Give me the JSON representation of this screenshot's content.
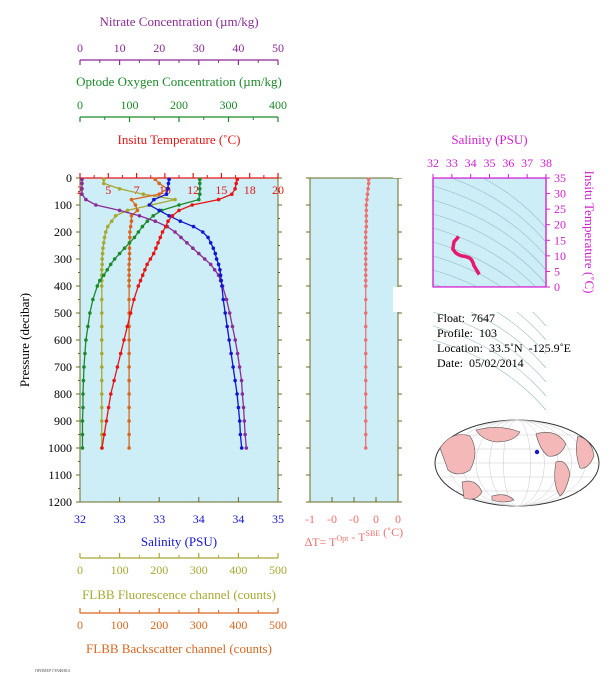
{
  "colors": {
    "nitrate": "#8b2b95",
    "oxygen": "#1a8a2a",
    "temperature": "#e81414",
    "salinity": "#1414d2",
    "fluorescence": "#a8a830",
    "backscatter": "#d9661f",
    "delta_t": "#f07070",
    "ts_axis": "#d21ed2",
    "panel_bg": "#cdeef7",
    "frame": "#6b6b20"
  },
  "axes": {
    "nitrate": {
      "label": "Nitrate Concentration (µm/kg)",
      "ticks": [
        "0",
        "10",
        "20",
        "30",
        "40",
        "50"
      ],
      "range": [
        0,
        50
      ]
    },
    "oxygen": {
      "label": "Optode Oxygen Concentration (µm/kg)",
      "ticks": [
        "0",
        "100",
        "200",
        "300",
        "400"
      ],
      "range": [
        0,
        400
      ]
    },
    "temperature": {
      "label": "Insitu Temperature (˚C)",
      "ticks": [
        "2",
        "5",
        "7",
        "10",
        "12",
        "15",
        "18",
        "20"
      ],
      "range": [
        2,
        20
      ]
    },
    "salinity": {
      "label": "Salinity (PSU)",
      "ticks": [
        "32",
        "33",
        "33",
        "34",
        "34",
        "35"
      ],
      "range": [
        32,
        35
      ]
    },
    "pressure": {
      "label": "Pressure (decibar)",
      "ticks": [
        "0",
        "100",
        "200",
        "300",
        "400",
        "500",
        "600",
        "700",
        "800",
        "900",
        "1000",
        "1100",
        "1200"
      ],
      "range": [
        0,
        1200
      ]
    },
    "fluorescence": {
      "label": "FLBB Fluorescence channel (counts)",
      "ticks": [
        "0",
        "100",
        "200",
        "300",
        "400",
        "500"
      ],
      "range": [
        0,
        500
      ]
    },
    "backscatter": {
      "label": "FLBB Backscatter channel (counts)",
      "ticks": [
        "0",
        "100",
        "200",
        "300",
        "400",
        "500"
      ],
      "range": [
        0,
        500
      ]
    },
    "delta_t": {
      "label_main": "∆T= T",
      "label_sup1": "Opt",
      "label_mid": " - T",
      "label_sup2": "SBE",
      "label_end": " (˚C)",
      "ticks": [
        "-1",
        "-0",
        "-0",
        "0",
        "0"
      ],
      "range": [
        -1,
        0.5
      ]
    }
  },
  "ts_panel": {
    "top_label": "Salinity (PSU)",
    "top_ticks": [
      "32",
      "33",
      "34",
      "35",
      "36",
      "37",
      "38"
    ],
    "right_label": "Insitu Temperature (˚C)",
    "right_ticks": [
      "0",
      "5",
      "10",
      "15",
      "20",
      "25",
      "30",
      "35"
    ],
    "sal_range": [
      32,
      38
    ],
    "temp_range": [
      0,
      35
    ]
  },
  "info": {
    "float": "Float:  7647",
    "profile": "Profile:  103",
    "location": "Location:  33.5˚N  -125.9˚E",
    "date": "Date:  05/02/2014"
  },
  "footer_text": "ПРИМЕР ГРАФИКА",
  "chart_data": {
    "type": "line",
    "title": "",
    "y": "pressure (decibar)",
    "series": [
      {
        "name": "Insitu Temperature",
        "x_unit": "˚C",
        "pressure": [
          5,
          20,
          40,
          60,
          80,
          100,
          120,
          140,
          160,
          180,
          200,
          220,
          240,
          260,
          280,
          300,
          320,
          340,
          360,
          380,
          400,
          450,
          500,
          550,
          600,
          650,
          700,
          750,
          800,
          850,
          900,
          950,
          1000
        ],
        "values": [
          16.3,
          16.2,
          16.1,
          15.8,
          14.6,
          12.2,
          11.0,
          10.4,
          10.0,
          9.8,
          9.5,
          9.3,
          9.1,
          8.9,
          8.7,
          8.4,
          8.1,
          7.9,
          7.7,
          7.5,
          7.3,
          6.9,
          6.6,
          6.3,
          6.0,
          5.7,
          5.4,
          5.1,
          4.8,
          4.6,
          4.4,
          4.2,
          4.0
        ]
      },
      {
        "name": "Salinity",
        "x_unit": "PSU",
        "pressure": [
          5,
          20,
          40,
          60,
          80,
          100,
          120,
          140,
          160,
          180,
          200,
          220,
          240,
          260,
          280,
          300,
          320,
          340,
          360,
          380,
          400,
          450,
          500,
          550,
          600,
          650,
          700,
          750,
          800,
          850,
          900,
          950,
          1000
        ],
        "values": [
          33.35,
          33.34,
          33.33,
          33.31,
          33.12,
          33.05,
          33.2,
          33.35,
          33.52,
          33.72,
          33.86,
          33.94,
          33.98,
          34.02,
          34.05,
          34.07,
          34.1,
          34.12,
          34.13,
          34.14,
          34.15,
          34.17,
          34.2,
          34.23,
          34.26,
          34.29,
          34.32,
          34.35,
          34.38,
          34.4,
          34.42,
          34.43,
          34.45
        ]
      },
      {
        "name": "Nitrate Concentration",
        "x_unit": "µm/kg",
        "pressure": [
          5,
          20,
          40,
          60,
          80,
          100,
          120,
          140,
          160,
          180,
          200,
          220,
          240,
          260,
          280,
          300,
          320,
          340,
          360,
          380,
          400,
          450,
          500,
          550,
          600,
          650,
          700,
          750,
          800,
          850,
          900,
          950,
          1000
        ],
        "values": [
          0.5,
          0.5,
          0.5,
          0.5,
          1.5,
          4,
          10,
          15,
          19,
          22,
          24,
          25.5,
          27,
          28.5,
          30,
          31.5,
          33,
          34,
          35,
          35.5,
          36,
          37,
          37.8,
          38.5,
          39.2,
          39.8,
          40.3,
          40.8,
          41,
          41.3,
          41.5,
          41.7,
          42
        ]
      },
      {
        "name": "Optode Oxygen Concentration",
        "x_unit": "µm/kg",
        "pressure": [
          5,
          20,
          40,
          60,
          80,
          100,
          120,
          140,
          160,
          180,
          200,
          220,
          240,
          260,
          280,
          300,
          320,
          340,
          360,
          380,
          400,
          450,
          500,
          550,
          600,
          650,
          700,
          750,
          800,
          850,
          900,
          950,
          1000
        ],
        "values": [
          242,
          242,
          242,
          242,
          240,
          200,
          165,
          148,
          136,
          126,
          118,
          110,
          100,
          90,
          80,
          70,
          62,
          55,
          48,
          40,
          35,
          26,
          20,
          16,
          12,
          10,
          8,
          7,
          6,
          6,
          5,
          5,
          5
        ]
      },
      {
        "name": "FLBB Fluorescence channel",
        "x_unit": "counts",
        "pressure": [
          5,
          20,
          40,
          60,
          80,
          100,
          120,
          140,
          160,
          180,
          200,
          220,
          240,
          260,
          280,
          300,
          320,
          340,
          360,
          380,
          400,
          450,
          500,
          550,
          600,
          650,
          700,
          750,
          800,
          850,
          900,
          950,
          1000
        ],
        "values": [
          60,
          60,
          100,
          160,
          240,
          180,
          120,
          90,
          80,
          70,
          65,
          62,
          60,
          58,
          57,
          56,
          56,
          55,
          55,
          55,
          55,
          55,
          55,
          55,
          55,
          55,
          55,
          55,
          55,
          55,
          55,
          55,
          55
        ]
      },
      {
        "name": "FLBB Backscatter channel",
        "x_unit": "counts",
        "pressure": [
          5,
          20,
          40,
          60,
          80,
          100,
          120,
          140,
          160,
          180,
          200,
          220,
          240,
          260,
          280,
          300,
          320,
          340,
          360,
          380,
          400,
          450,
          500,
          550,
          600,
          650,
          700,
          750,
          800,
          850,
          900,
          950,
          1000
        ],
        "values": [
          190,
          200,
          220,
          200,
          130,
          140,
          145,
          130,
          130,
          128,
          126,
          126,
          125,
          125,
          125,
          125,
          124,
          124,
          124,
          124,
          124,
          124,
          124,
          124,
          124,
          124,
          124,
          124,
          124,
          124,
          124,
          124,
          124
        ]
      },
      {
        "name": "∆T",
        "x_unit": "˚C",
        "pressure": [
          5,
          20,
          40,
          60,
          80,
          100,
          120,
          140,
          160,
          180,
          200,
          220,
          240,
          260,
          280,
          300,
          320,
          340,
          360,
          380,
          400,
          450,
          500,
          550,
          600,
          650,
          700,
          750,
          800,
          850,
          900,
          950,
          1000
        ],
        "values": [
          0.0,
          0.0,
          -0.01,
          -0.02,
          -0.03,
          -0.04,
          -0.04,
          -0.04,
          -0.04,
          -0.04,
          -0.05,
          -0.05,
          -0.05,
          -0.05,
          -0.05,
          -0.05,
          -0.05,
          -0.05,
          -0.05,
          -0.05,
          -0.05,
          -0.05,
          -0.05,
          -0.05,
          -0.05,
          -0.05,
          -0.05,
          -0.05,
          -0.05,
          -0.05,
          -0.05,
          -0.05,
          -0.05
        ]
      }
    ]
  }
}
